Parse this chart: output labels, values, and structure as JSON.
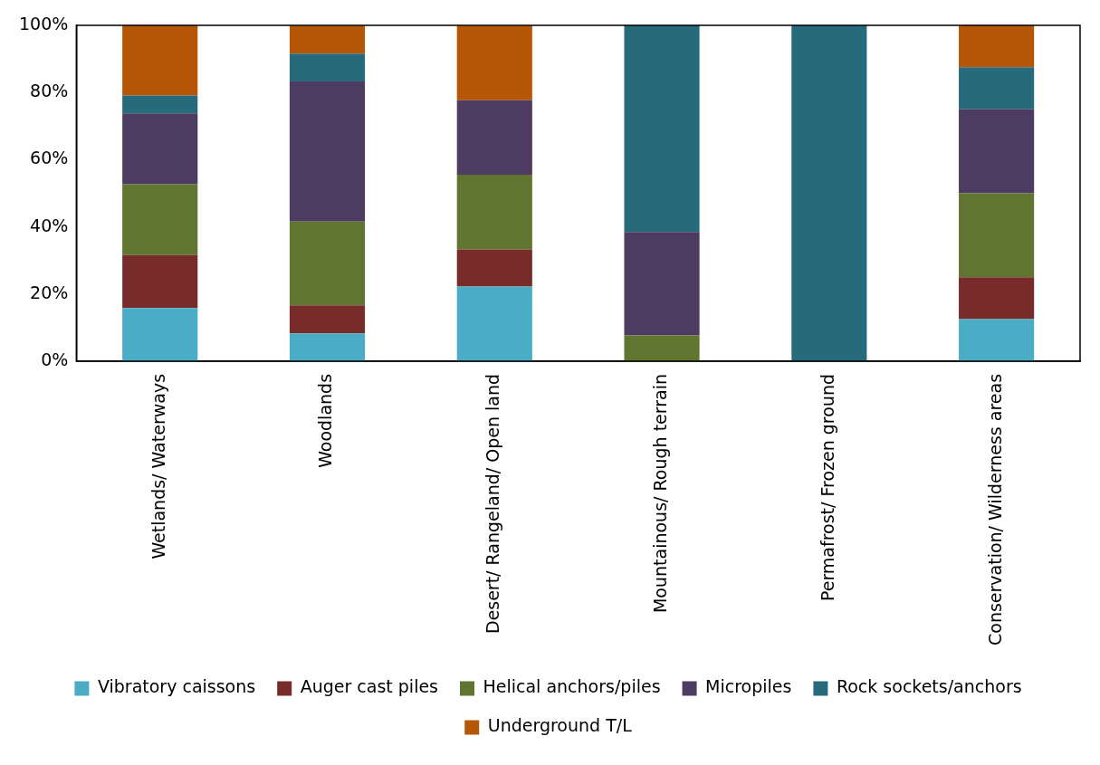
{
  "chart_data": {
    "type": "bar",
    "stacked": true,
    "categories": [
      "Wetlands/ Waterways",
      "Woodlands",
      "Desert/ Rangeland/ Open land",
      "Mountainous/ Rough terrain",
      "Permafrost/ Frozen ground",
      "Conservation/ Wilderness areas"
    ],
    "series": [
      {
        "name": "Vibratory caissons",
        "color": "#4bacc6",
        "values": [
          15.8,
          8.3,
          22.2,
          0,
          0,
          12.5
        ]
      },
      {
        "name": "Auger cast piles",
        "color": "#772c2a",
        "values": [
          15.8,
          8.3,
          11.1,
          0,
          0,
          12.5
        ]
      },
      {
        "name": "Helical anchors/piles",
        "color": "#5f7530",
        "values": [
          21.1,
          25,
          22.2,
          7.7,
          0,
          25
        ]
      },
      {
        "name": "Micropiles",
        "color": "#4d3b62",
        "values": [
          21.1,
          41.7,
          22.2,
          30.8,
          0,
          25
        ]
      },
      {
        "name": "Rock sockets/anchors",
        "color": "#276a7c",
        "values": [
          5.3,
          8.3,
          0,
          61.5,
          100,
          12.5
        ]
      },
      {
        "name": "Underground T/L",
        "color": "#b65708",
        "values": [
          21.1,
          8.3,
          22.2,
          0,
          0,
          12.5
        ]
      }
    ],
    "ylim": [
      0,
      100
    ],
    "yticks": [
      {
        "value": 0,
        "label": "0%"
      },
      {
        "value": 20,
        "label": "20%"
      },
      {
        "value": 40,
        "label": "40%"
      },
      {
        "value": 60,
        "label": "60%"
      },
      {
        "value": 80,
        "label": "80%"
      },
      {
        "value": 100,
        "label": "100%"
      }
    ],
    "grid": false,
    "legend": "bottom"
  }
}
